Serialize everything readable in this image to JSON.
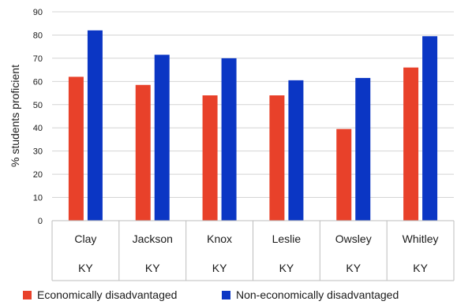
{
  "chart_data": {
    "type": "bar",
    "ylabel": "% students proficient",
    "ylim": [
      0,
      90
    ],
    "yticks": [
      0,
      10,
      20,
      30,
      40,
      50,
      60,
      70,
      80,
      90
    ],
    "grid": true,
    "legend_position": "bottom",
    "categories": [
      {
        "name": "Clay",
        "state": "KY"
      },
      {
        "name": "Jackson",
        "state": "KY"
      },
      {
        "name": "Knox",
        "state": "KY"
      },
      {
        "name": "Leslie",
        "state": "KY"
      },
      {
        "name": "Owsley",
        "state": "KY"
      },
      {
        "name": "Whitley",
        "state": "KY"
      }
    ],
    "series": [
      {
        "name": "Economically disadvantaged",
        "color": "#e8412a",
        "values": [
          62,
          58.5,
          54,
          54,
          39.5,
          66
        ]
      },
      {
        "name": "Non-economically disadvantaged",
        "color": "#0b36c4",
        "values": [
          82,
          71.5,
          70,
          60.5,
          61.5,
          79.5
        ]
      }
    ]
  }
}
